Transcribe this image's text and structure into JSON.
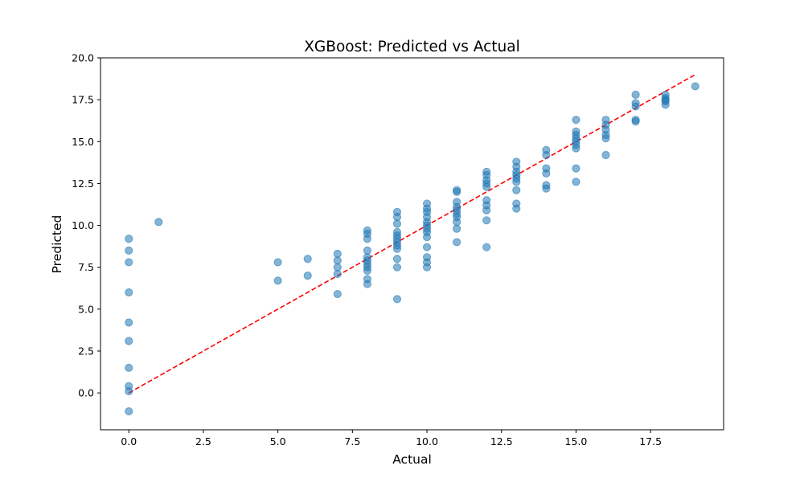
{
  "chart_data": {
    "type": "scatter",
    "title": "XGBoost: Predicted vs Actual",
    "xlabel": "Actual",
    "ylabel": "Predicted",
    "xlim": [
      -0.95,
      19.95
    ],
    "ylim": [
      -2.2,
      20.0
    ],
    "xticks": [
      0.0,
      2.5,
      5.0,
      7.5,
      10.0,
      12.5,
      15.0,
      17.5
    ],
    "xtick_labels": [
      "0.0",
      "2.5",
      "5.0",
      "7.5",
      "10.0",
      "12.5",
      "15.0",
      "17.5"
    ],
    "yticks": [
      0.0,
      2.5,
      5.0,
      7.5,
      10.0,
      12.5,
      15.0,
      17.5,
      20.0
    ],
    "ytick_labels": [
      "0.0",
      "2.5",
      "5.0",
      "7.5",
      "10.0",
      "12.5",
      "15.0",
      "17.5",
      "20.0"
    ],
    "grid": false,
    "point_color": "#1f77b4",
    "point_alpha": 0.55,
    "reference_line": {
      "x": [
        0,
        19
      ],
      "y": [
        0,
        19
      ],
      "color": "#ff0000",
      "style": "dashed"
    },
    "points": [
      [
        0,
        9.2
      ],
      [
        0,
        8.5
      ],
      [
        0,
        7.8
      ],
      [
        0,
        6.0
      ],
      [
        0,
        4.2
      ],
      [
        0,
        3.1
      ],
      [
        0,
        1.5
      ],
      [
        0,
        0.4
      ],
      [
        0,
        0.1
      ],
      [
        0,
        -1.1
      ],
      [
        1,
        10.2
      ],
      [
        5,
        7.8
      ],
      [
        5,
        6.7
      ],
      [
        6,
        8.0
      ],
      [
        6,
        7.0
      ],
      [
        7,
        8.3
      ],
      [
        7,
        7.9
      ],
      [
        7,
        7.5
      ],
      [
        7,
        7.1
      ],
      [
        7,
        5.9
      ],
      [
        8,
        9.7
      ],
      [
        8,
        9.5
      ],
      [
        8,
        9.2
      ],
      [
        8,
        8.5
      ],
      [
        8,
        8.1
      ],
      [
        8,
        7.9
      ],
      [
        8,
        7.7
      ],
      [
        8,
        7.5
      ],
      [
        8,
        7.3
      ],
      [
        8,
        6.8
      ],
      [
        8,
        6.5
      ],
      [
        9,
        10.8
      ],
      [
        9,
        10.5
      ],
      [
        9,
        10.1
      ],
      [
        9,
        9.6
      ],
      [
        9,
        9.4
      ],
      [
        9,
        9.2
      ],
      [
        9,
        9.0
      ],
      [
        9,
        8.8
      ],
      [
        9,
        8.6
      ],
      [
        9,
        8.0
      ],
      [
        9,
        7.5
      ],
      [
        9,
        5.6
      ],
      [
        10,
        11.3
      ],
      [
        10,
        11.0
      ],
      [
        10,
        10.8
      ],
      [
        10,
        10.5
      ],
      [
        10,
        10.2
      ],
      [
        10,
        10.0
      ],
      [
        10,
        9.8
      ],
      [
        10,
        9.6
      ],
      [
        10,
        9.3
      ],
      [
        10,
        8.7
      ],
      [
        10,
        8.1
      ],
      [
        10,
        7.8
      ],
      [
        10,
        7.5
      ],
      [
        11,
        12.1
      ],
      [
        11,
        12.0
      ],
      [
        11,
        11.4
      ],
      [
        11,
        11.1
      ],
      [
        11,
        10.9
      ],
      [
        11,
        10.7
      ],
      [
        11,
        10.5
      ],
      [
        11,
        10.2
      ],
      [
        11,
        9.8
      ],
      [
        11,
        9.0
      ],
      [
        12,
        13.2
      ],
      [
        12,
        13.0
      ],
      [
        12,
        12.7
      ],
      [
        12,
        12.5
      ],
      [
        12,
        12.3
      ],
      [
        12,
        11.5
      ],
      [
        12,
        11.2
      ],
      [
        12,
        10.9
      ],
      [
        12,
        10.3
      ],
      [
        12,
        8.7
      ],
      [
        13,
        13.8
      ],
      [
        13,
        13.5
      ],
      [
        13,
        13.2
      ],
      [
        13,
        13.0
      ],
      [
        13,
        12.8
      ],
      [
        13,
        12.6
      ],
      [
        13,
        12.1
      ],
      [
        13,
        11.3
      ],
      [
        13,
        11.0
      ],
      [
        14,
        14.5
      ],
      [
        14,
        14.2
      ],
      [
        14,
        13.4
      ],
      [
        14,
        13.1
      ],
      [
        14,
        12.4
      ],
      [
        14,
        12.2
      ],
      [
        15,
        16.3
      ],
      [
        15,
        15.6
      ],
      [
        15,
        15.4
      ],
      [
        15,
        15.2
      ],
      [
        15,
        15.0
      ],
      [
        15,
        14.8
      ],
      [
        15,
        14.6
      ],
      [
        15,
        13.4
      ],
      [
        15,
        12.6
      ],
      [
        16,
        16.3
      ],
      [
        16,
        16.0
      ],
      [
        16,
        15.7
      ],
      [
        16,
        15.4
      ],
      [
        16,
        15.2
      ],
      [
        16,
        14.2
      ],
      [
        17,
        17.8
      ],
      [
        17,
        17.3
      ],
      [
        17,
        17.1
      ],
      [
        17,
        16.3
      ],
      [
        17,
        16.2
      ],
      [
        18,
        17.8
      ],
      [
        18,
        17.6
      ],
      [
        18,
        17.5
      ],
      [
        18,
        17.4
      ],
      [
        18,
        17.2
      ],
      [
        19,
        18.3
      ]
    ]
  }
}
